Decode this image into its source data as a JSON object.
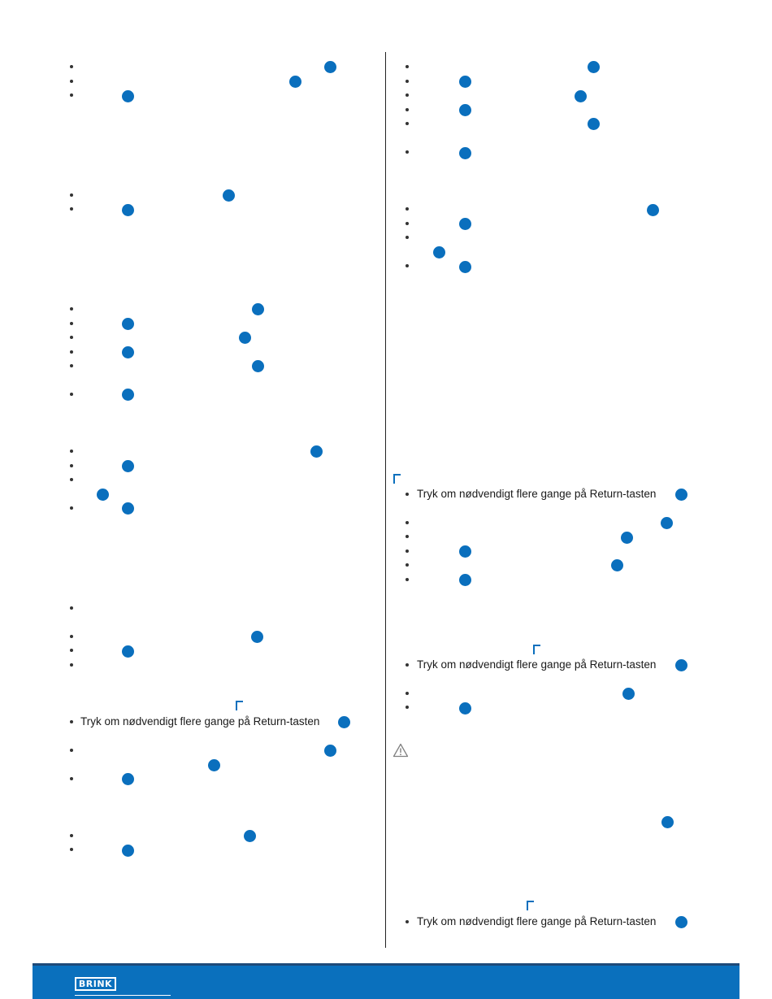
{
  "instruction_text": "Tryk om nødvendigt flere gange på Return-tasten",
  "brand": {
    "logo_text": "BRINK"
  },
  "colors": {
    "accent": "#0a6fbd",
    "footer": "#0a70bd",
    "footer_top": "#1e4a79"
  },
  "icons": [
    "step-marker-icon",
    "bullet-icon",
    "return-key-icon",
    "warning-icon"
  ]
}
